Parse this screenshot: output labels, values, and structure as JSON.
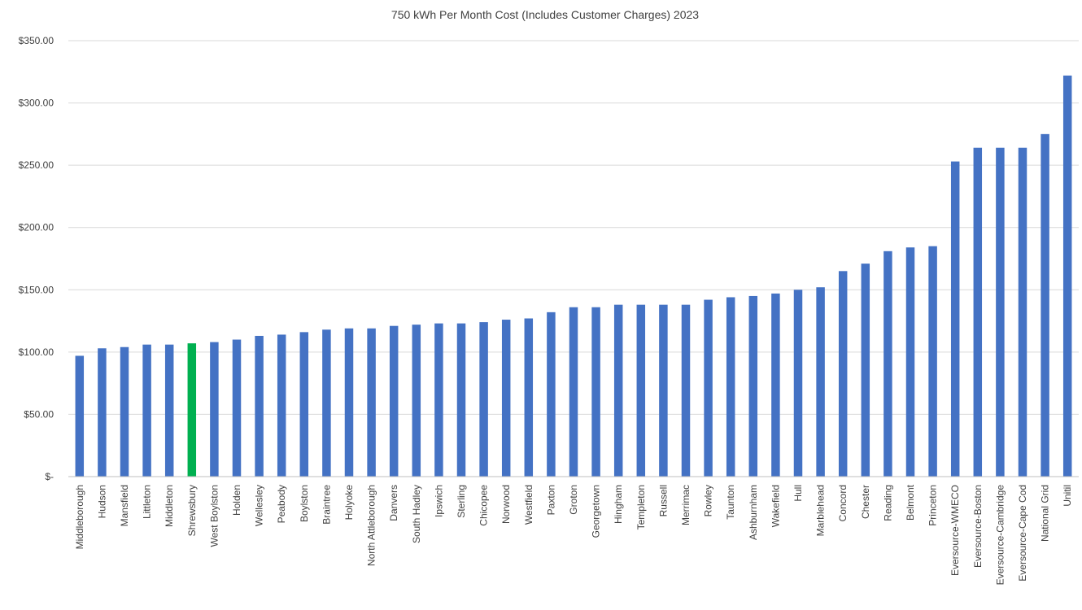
{
  "chart_data": {
    "type": "bar",
    "title": "750 kWh Per Month Cost (Includes Customer Charges) 2023",
    "xlabel": "",
    "ylabel": "",
    "ylim": [
      0,
      350
    ],
    "yticks": [
      0,
      50,
      100,
      150,
      200,
      250,
      300,
      350
    ],
    "ytick_labels": [
      "$-",
      "$50.00",
      "$100.00",
      "$150.00",
      "$200.00",
      "$250.00",
      "$300.00",
      "$350.00"
    ],
    "grid": true,
    "legend": "none",
    "bar_color": "#4472c4",
    "highlight_color": "#00b050",
    "highlight_category": "Shrewsbury",
    "categories": [
      "Middleborough",
      "Hudson",
      "Mansfield",
      "Littleton",
      "Middleton",
      "Shrewsbury",
      "West Boylston",
      "Holden",
      "Wellesley",
      "Peabody",
      "Boylston",
      "Braintree",
      "Holyoke",
      "North Attleborough",
      "Danvers",
      "South Hadley",
      "Ipswich",
      "Sterling",
      "Chicopee",
      "Norwood",
      "Westfield",
      "Paxton",
      "Groton",
      "Georgetown",
      "Hingham",
      "Templeton",
      "Russell",
      "Merrimac",
      "Rowley",
      "Taunton",
      "Ashburnham",
      "Wakefield",
      "Hull",
      "Marblehead",
      "Concord",
      "Chester",
      "Reading",
      "Belmont",
      "Princeton",
      "Eversource-WMECO",
      "Eversource-Boston",
      "Eversource-Cambridge",
      "Eversource-Cape Cod",
      "National Grid",
      "Unitil"
    ],
    "values": [
      97,
      103,
      104,
      106,
      106,
      107,
      108,
      110,
      113,
      114,
      116,
      118,
      119,
      119,
      121,
      122,
      123,
      123,
      124,
      126,
      127,
      132,
      136,
      136,
      138,
      138,
      138,
      138,
      142,
      144,
      145,
      147,
      150,
      152,
      165,
      171,
      181,
      184,
      185,
      253,
      264,
      264,
      264,
      275,
      322
    ]
  }
}
